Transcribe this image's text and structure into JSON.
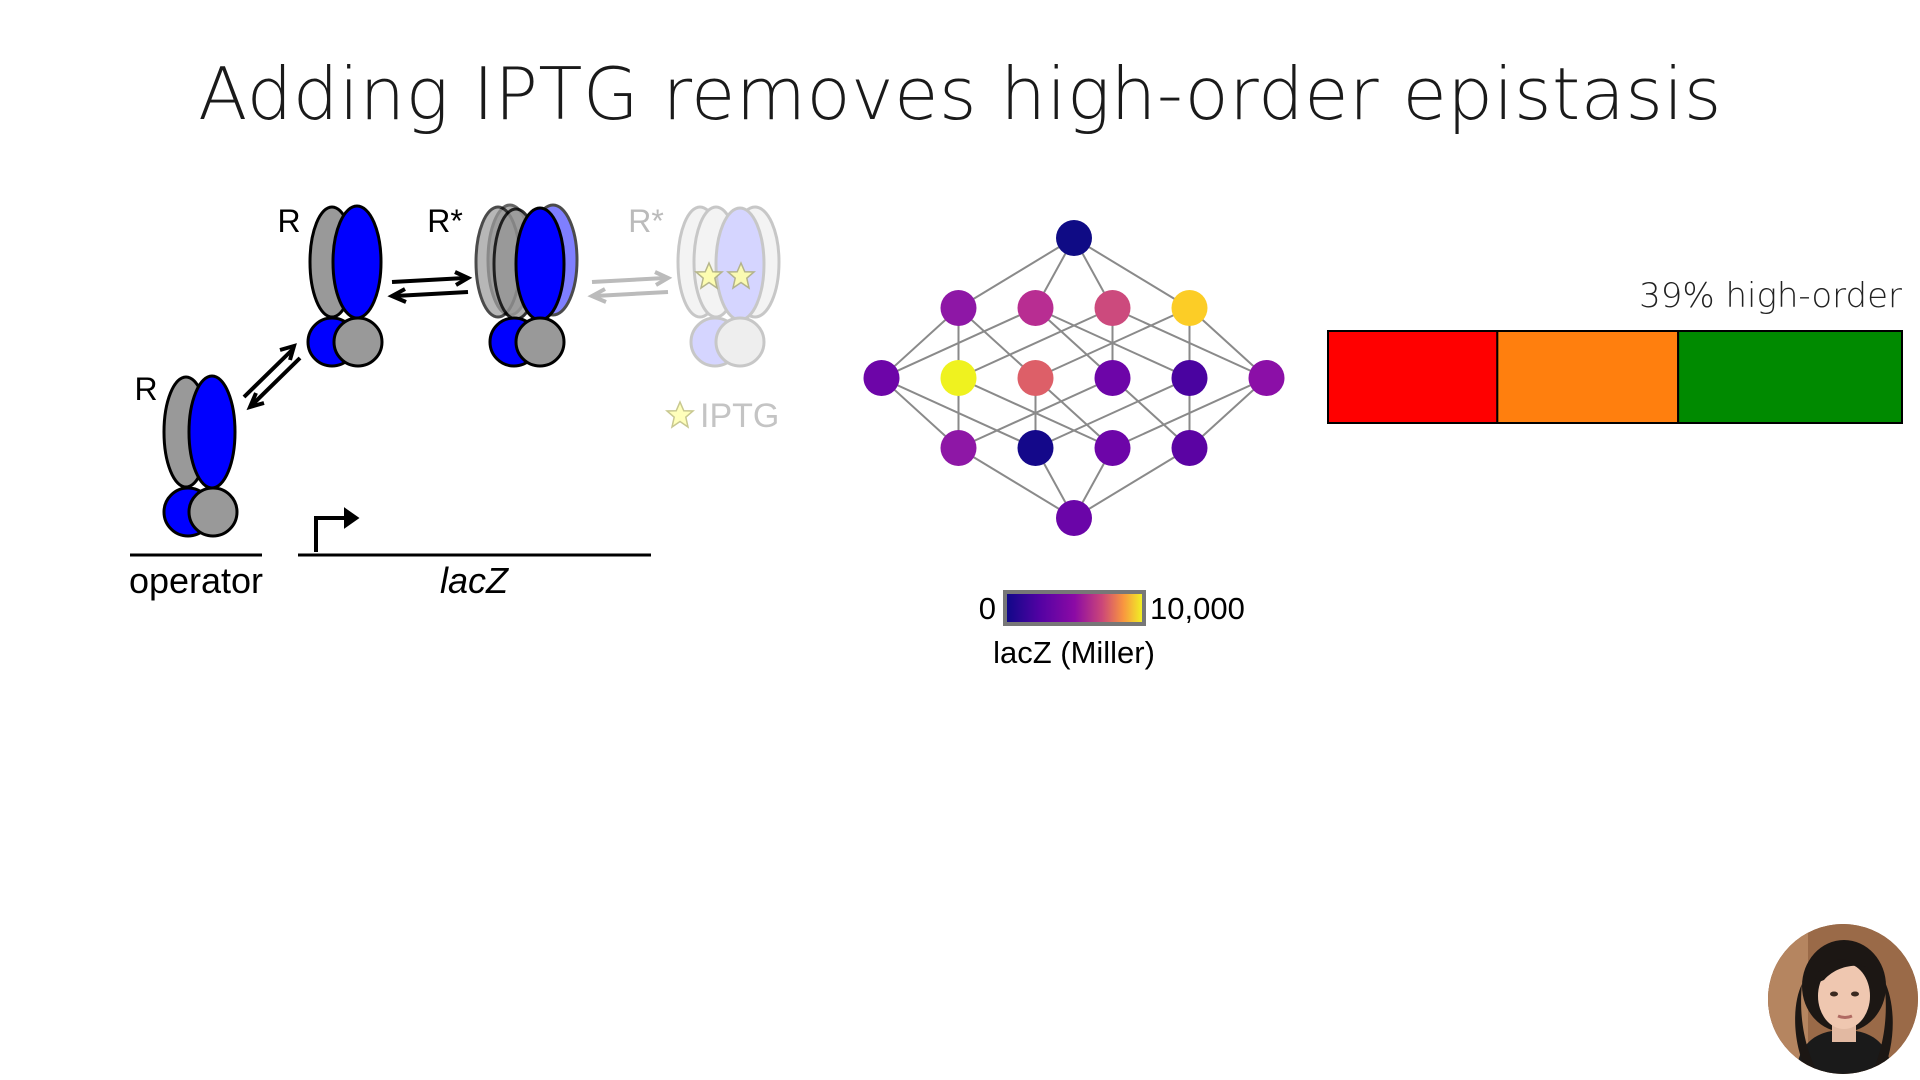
{
  "slide": {
    "title": "Adding IPTG removes high-order epistasis"
  },
  "mechanism": {
    "repressor_label_lower": "R",
    "repressor_label_upper": "R",
    "active_repressor_label": "R*",
    "faded_repressor_label": "R*",
    "iptg_label": "IPTG",
    "operator_label": "operator",
    "gene_label": "lacZ",
    "colors": {
      "blue_subunit": "#0000ff",
      "gray_subunit": "#999999",
      "iptg_star": "#ffffaa"
    }
  },
  "lattice": {
    "node_levels": [
      [
        "#0f0b85"
      ],
      [
        "#8e17a6",
        "#b82d92",
        "#cc4a7d",
        "#fccd26"
      ],
      [
        "#6d05a8",
        "#eff21f",
        "#dd5f68",
        "#6d05a8",
        "#4a03a0",
        "#8b0fa7"
      ],
      [
        "#8e17a6",
        "#14088a",
        "#6d05a8",
        "#5b03a3"
      ],
      [
        "#6a05a8"
      ]
    ],
    "colorbar": {
      "min_label": "0",
      "max_label": "10,000",
      "title": "lacZ (Miller)"
    }
  },
  "epistasis_bar": {
    "annotation": "39% high-order",
    "segments": [
      {
        "fraction": 0.295,
        "color": "#ff0000"
      },
      {
        "fraction": 0.315,
        "color": "#ff7f0e"
      },
      {
        "fraction": 0.39,
        "color": "#008a00"
      }
    ]
  },
  "presenter": {
    "avatar_icon": "presenter-avatar-icon"
  }
}
